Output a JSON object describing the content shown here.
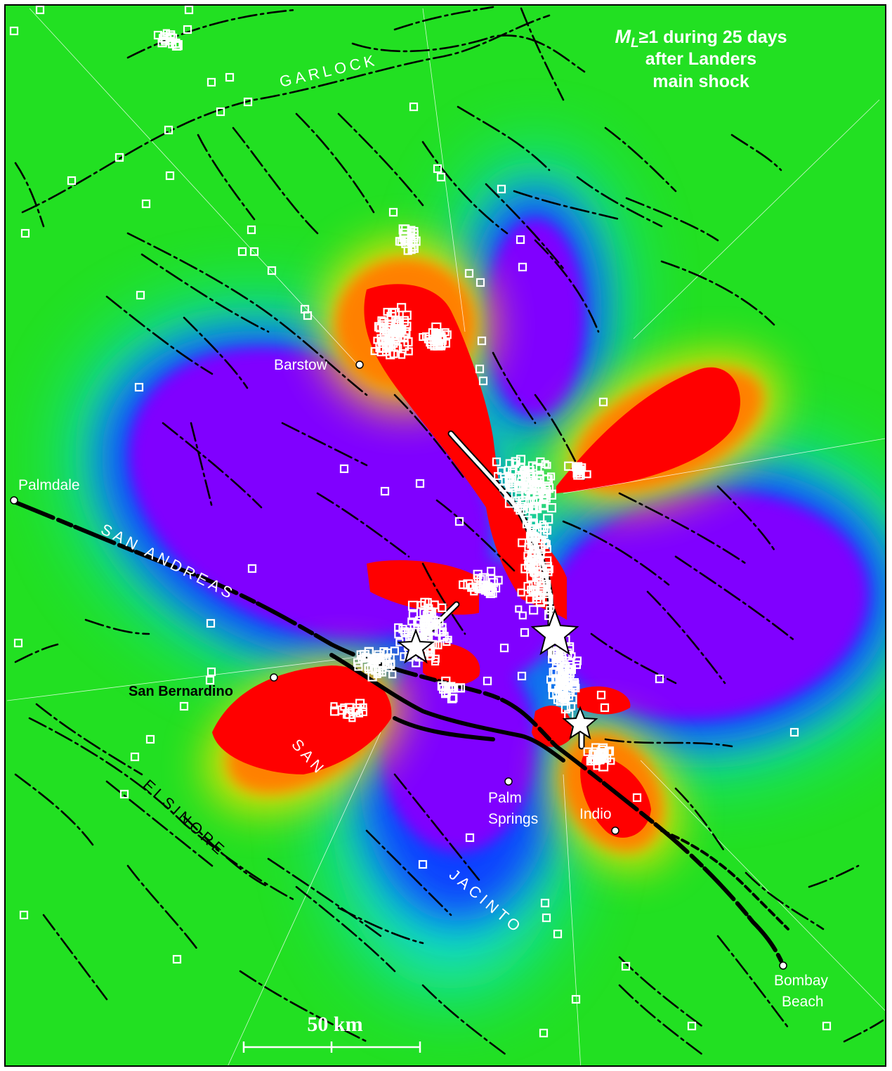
{
  "title": {
    "line1_symbol": "M",
    "line1_subscript": "L",
    "line1_rest": "≥1 during 25 days",
    "line2": "after Landers",
    "line3": "main shock"
  },
  "cities": [
    {
      "name": "Barstow"
    },
    {
      "name": "Palmdale"
    },
    {
      "name": "San Bernardino"
    },
    {
      "name": "Palm",
      "name2": "Springs"
    },
    {
      "name": "Indio"
    },
    {
      "name": "Bombay",
      "name2": "Beach"
    }
  ],
  "faults": {
    "garlock": "GARLOCK",
    "san_andreas": "SAN ANDREAS",
    "san_jacinto_1": "SAN",
    "san_jacinto_2": "JACINTO",
    "elsinore": "ELSINORE"
  },
  "scale_bar": {
    "label": "50 km"
  },
  "colors": {
    "stress_increase": "#ff0000",
    "stress_decrease": "#8000ff",
    "neutral": "#20e020",
    "earthquake_marker": "#ffffff",
    "fault_trace": "#000000"
  },
  "legend_icons": {
    "epicenter": "star-icon",
    "aftershock": "square-icon",
    "city": "circle-icon"
  }
}
